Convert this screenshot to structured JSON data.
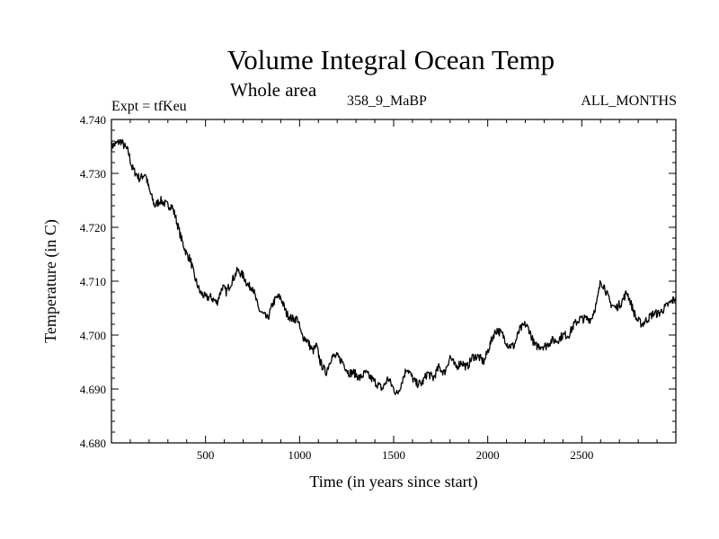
{
  "chart_data": {
    "type": "line",
    "title": "Volume Integral Ocean Temp",
    "subtitle": "Whole area",
    "left_label": "Expt = tfKeu",
    "center_label": "358_9_MaBP",
    "right_label": "ALL_MONTHS",
    "xlabel": "Time (in years since start)",
    "ylabel": "Temperature (in C)",
    "xlim": [
      0,
      3000
    ],
    "ylim": [
      4.68,
      4.74
    ],
    "x_ticks": [
      500,
      1000,
      1500,
      2000,
      2500
    ],
    "x_tick_labels": [
      "500",
      "1000",
      "1500",
      "2000",
      "2500"
    ],
    "y_ticks": [
      4.68,
      4.69,
      4.7,
      4.71,
      4.72,
      4.73,
      4.74
    ],
    "y_tick_labels": [
      "4.680",
      "4.690",
      "4.700",
      "4.710",
      "4.720",
      "4.730",
      "4.740"
    ],
    "grid": false,
    "series": [
      {
        "color": "#000000",
        "points": [
          [
            0,
            4.735
          ],
          [
            50,
            4.736
          ],
          [
            90,
            4.734
          ],
          [
            110,
            4.731
          ],
          [
            150,
            4.729
          ],
          [
            180,
            4.73
          ],
          [
            200,
            4.727
          ],
          [
            230,
            4.724
          ],
          [
            260,
            4.725
          ],
          [
            300,
            4.724
          ],
          [
            320,
            4.724
          ],
          [
            340,
            4.722
          ],
          [
            370,
            4.718
          ],
          [
            400,
            4.715
          ],
          [
            420,
            4.714
          ],
          [
            440,
            4.711
          ],
          [
            470,
            4.708
          ],
          [
            500,
            4.707
          ],
          [
            530,
            4.707
          ],
          [
            560,
            4.706
          ],
          [
            590,
            4.709
          ],
          [
            610,
            4.708
          ],
          [
            640,
            4.71
          ],
          [
            670,
            4.712
          ],
          [
            700,
            4.711
          ],
          [
            730,
            4.709
          ],
          [
            750,
            4.709
          ],
          [
            780,
            4.705
          ],
          [
            800,
            4.704
          ],
          [
            830,
            4.703
          ],
          [
            860,
            4.706
          ],
          [
            880,
            4.707
          ],
          [
            900,
            4.707
          ],
          [
            930,
            4.704
          ],
          [
            960,
            4.703
          ],
          [
            990,
            4.703
          ],
          [
            1010,
            4.7
          ],
          [
            1040,
            4.699
          ],
          [
            1070,
            4.697
          ],
          [
            1090,
            4.698
          ],
          [
            1110,
            4.695
          ],
          [
            1140,
            4.693
          ],
          [
            1170,
            4.696
          ],
          [
            1200,
            4.696
          ],
          [
            1230,
            4.695
          ],
          [
            1260,
            4.693
          ],
          [
            1290,
            4.693
          ],
          [
            1320,
            4.692
          ],
          [
            1350,
            4.693
          ],
          [
            1380,
            4.692
          ],
          [
            1410,
            4.691
          ],
          [
            1440,
            4.69
          ],
          [
            1470,
            4.692
          ],
          [
            1500,
            4.69
          ],
          [
            1520,
            4.689
          ],
          [
            1550,
            4.692
          ],
          [
            1570,
            4.694
          ],
          [
            1600,
            4.692
          ],
          [
            1620,
            4.691
          ],
          [
            1650,
            4.691
          ],
          [
            1680,
            4.693
          ],
          [
            1710,
            4.692
          ],
          [
            1740,
            4.694
          ],
          [
            1770,
            4.693
          ],
          [
            1800,
            4.696
          ],
          [
            1830,
            4.694
          ],
          [
            1860,
            4.695
          ],
          [
            1890,
            4.694
          ],
          [
            1920,
            4.696
          ],
          [
            1950,
            4.696
          ],
          [
            1980,
            4.695
          ],
          [
            2010,
            4.698
          ],
          [
            2030,
            4.7
          ],
          [
            2050,
            4.701
          ],
          [
            2080,
            4.7
          ],
          [
            2110,
            4.698
          ],
          [
            2140,
            4.698
          ],
          [
            2170,
            4.701
          ],
          [
            2200,
            4.702
          ],
          [
            2220,
            4.701
          ],
          [
            2250,
            4.698
          ],
          [
            2280,
            4.698
          ],
          [
            2310,
            4.698
          ],
          [
            2340,
            4.699
          ],
          [
            2370,
            4.699
          ],
          [
            2400,
            4.7
          ],
          [
            2430,
            4.7
          ],
          [
            2460,
            4.702
          ],
          [
            2490,
            4.703
          ],
          [
            2520,
            4.703
          ],
          [
            2550,
            4.703
          ],
          [
            2580,
            4.706
          ],
          [
            2600,
            4.71
          ],
          [
            2620,
            4.709
          ],
          [
            2650,
            4.706
          ],
          [
            2680,
            4.705
          ],
          [
            2710,
            4.706
          ],
          [
            2740,
            4.708
          ],
          [
            2760,
            4.706
          ],
          [
            2790,
            4.703
          ],
          [
            2820,
            4.702
          ],
          [
            2850,
            4.703
          ],
          [
            2880,
            4.704
          ],
          [
            2910,
            4.704
          ],
          [
            2940,
            4.705
          ],
          [
            2970,
            4.706
          ],
          [
            3000,
            4.707
          ]
        ]
      }
    ]
  }
}
